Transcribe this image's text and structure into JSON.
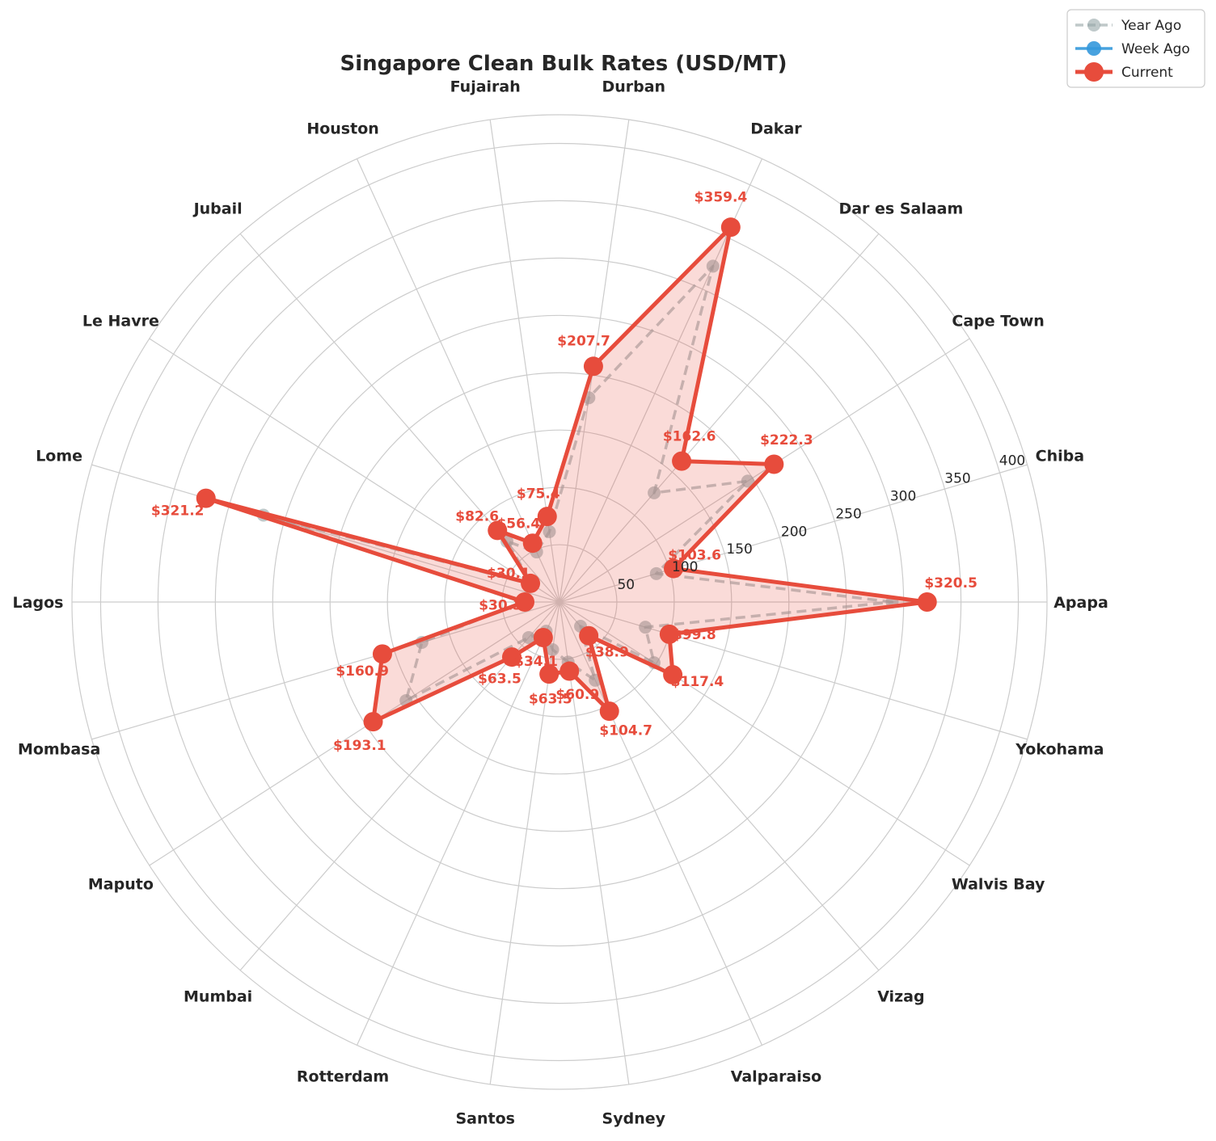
{
  "chart_data": {
    "type": "radar",
    "title": "Singapore Clean Bulk Rates (USD/MT)",
    "categories": [
      "Apapa",
      "Chiba",
      "Cape Town",
      "Dar es Salaam",
      "Dakar",
      "Durban",
      "Fujairah",
      "Houston",
      "Jubail",
      "Le Havre",
      "Lome",
      "Lagos",
      "Mombasa",
      "Maputo",
      "Mumbai",
      "Rotterdam",
      "Santos",
      "Sydney",
      "Valparaiso",
      "Vizag",
      "Walvis Bay",
      "Yokohama"
    ],
    "series": [
      {
        "name": "Year Ago",
        "color": "#95a5a6",
        "line": "dashed",
        "values": [
          290.0,
          88.0,
          195.0,
          126.0,
          322.0,
          180.0,
          62.0,
          48.0,
          70.0,
          28.0,
          269.0,
          33.0,
          125.0,
          159.0,
          41.0,
          28.0,
          42.0,
          53.0,
          75.0,
          28.0,
          98.0,
          78.0
        ]
      },
      {
        "name": "Week Ago",
        "color": "#3498db",
        "line": "solid",
        "values": [
          320.5,
          103.6,
          222.3,
          162.6,
          359.4,
          207.7,
          75.4,
          56.4,
          82.6,
          30.1,
          321.2,
          30.3,
          160.9,
          193.1,
          63.5,
          34.1,
          63.5,
          60.9,
          104.7,
          38.9,
          117.4,
          99.8
        ]
      },
      {
        "name": "Current",
        "color": "#e74c3c",
        "line": "solid",
        "values": [
          320.5,
          103.6,
          222.3,
          162.6,
          359.4,
          207.7,
          75.4,
          56.4,
          82.6,
          30.1,
          321.2,
          30.3,
          160.9,
          193.1,
          63.5,
          34.1,
          63.5,
          60.9,
          104.7,
          38.9,
          117.4,
          99.8
        ]
      }
    ],
    "value_labels": [
      "$320.5",
      "$103.6",
      "$222.3",
      "$162.6",
      "$359.4",
      "$207.7",
      "$75.4",
      "$56.4",
      "$82.6",
      "$30.1",
      "$321.2",
      "$30.3",
      "$160.9",
      "$193.1",
      "$63.5",
      "$34.1",
      "$63.5",
      "$60.9",
      "$104.7",
      "$38.9",
      "$117.4",
      "$99.8"
    ],
    "radial_ticks": [
      50,
      100,
      150,
      200,
      250,
      300,
      350,
      400
    ],
    "rlim": [
      0,
      425
    ],
    "grid": true,
    "legend_position": "top-right"
  }
}
